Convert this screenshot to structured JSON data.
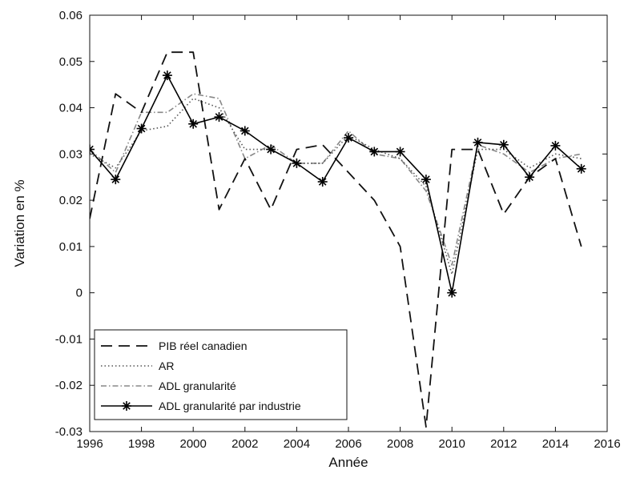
{
  "chart_data": {
    "type": "line",
    "xlabel": "Année",
    "ylabel": "Variation en %",
    "xlim": [
      1996,
      2016
    ],
    "ylim": [
      -0.03,
      0.06
    ],
    "xticks": [
      1996,
      1998,
      2000,
      2002,
      2004,
      2006,
      2008,
      2010,
      2012,
      2014,
      2016
    ],
    "yticks": [
      -0.03,
      -0.02,
      -0.01,
      0,
      0.01,
      0.02,
      0.03,
      0.04,
      0.05,
      0.06
    ],
    "xtick_labels": [
      "1996",
      "1998",
      "2000",
      "2002",
      "2004",
      "2006",
      "2008",
      "2010",
      "2012",
      "2014",
      "2016"
    ],
    "ytick_labels": [
      "-0.03",
      "-0.02",
      "-0.01",
      "0",
      "0.01",
      "0.02",
      "0.03",
      "0.04",
      "0.05",
      "0.06"
    ],
    "grid": false,
    "legend_position": "bottom-left",
    "x": [
      1996,
      1997,
      1998,
      1999,
      2000,
      2001,
      2002,
      2003,
      2004,
      2005,
      2006,
      2007,
      2008,
      2009,
      2010,
      2011,
      2012,
      2013,
      2014,
      2015
    ],
    "series": [
      {
        "name": "PIB réel canadien",
        "style": "dashed",
        "color": "#111111",
        "values": [
          0.016,
          0.043,
          0.039,
          0.052,
          0.052,
          0.018,
          0.029,
          0.018,
          0.031,
          0.032,
          0.026,
          0.02,
          0.01,
          -0.029,
          0.031,
          0.031,
          0.017,
          0.025,
          0.029,
          0.01
        ]
      },
      {
        "name": "AR",
        "style": "dotted",
        "color": "#555555",
        "values": [
          0.03,
          0.027,
          0.035,
          0.036,
          0.042,
          0.04,
          0.031,
          0.031,
          0.028,
          0.028,
          0.034,
          0.031,
          0.029,
          0.023,
          0.004,
          0.031,
          0.031,
          0.027,
          0.03,
          0.029
        ]
      },
      {
        "name": "ADL granularité",
        "style": "dashdot",
        "color": "#888888",
        "values": [
          0.031,
          0.026,
          0.039,
          0.039,
          0.043,
          0.042,
          0.029,
          0.032,
          0.028,
          0.028,
          0.035,
          0.03,
          0.029,
          0.022,
          0.006,
          0.032,
          0.03,
          0.026,
          0.029,
          0.03
        ]
      },
      {
        "name": "ADL granularité par industrie",
        "style": "solid-star",
        "color": "#000000",
        "values": [
          0.031,
          0.0245,
          0.0355,
          0.047,
          0.0365,
          0.038,
          0.035,
          0.031,
          0.028,
          0.024,
          0.0335,
          0.0305,
          0.0305,
          0.0245,
          0.0,
          0.0325,
          0.032,
          0.025,
          0.0318,
          0.0268
        ]
      }
    ]
  }
}
